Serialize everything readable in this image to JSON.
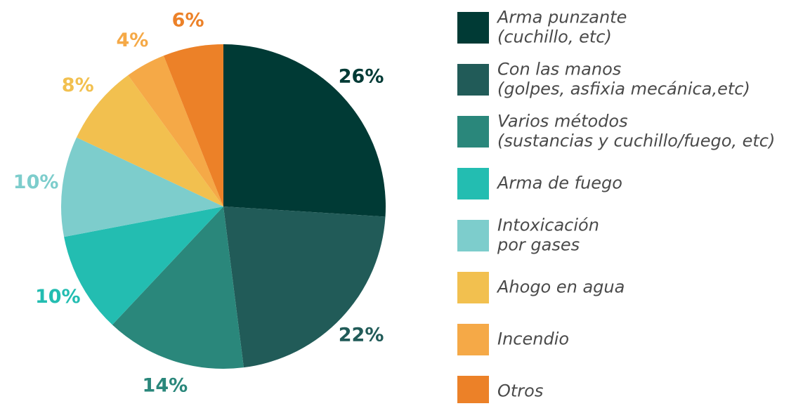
{
  "chart_data": {
    "type": "pie",
    "labels": [
      [
        "Arma punzante",
        "(cuchillo, etc)"
      ],
      [
        "Con las manos",
        "(golpes, asfixia mecánica,etc)"
      ],
      [
        "Varios métodos",
        "(sustancias y cuchillo/fuego, etc)"
      ],
      [
        "Arma de fuego"
      ],
      [
        "Intoxicación",
        "por gases"
      ],
      [
        "Ahogo en agua"
      ],
      [
        "Incendio"
      ],
      [
        "Otros"
      ]
    ],
    "values": [
      26,
      22,
      14,
      10,
      10,
      8,
      4,
      6
    ],
    "value_labels": [
      "26%",
      "22%",
      "14%",
      "10%",
      "10%",
      "8%",
      "4%",
      "6%"
    ],
    "colors": [
      "#003a35",
      "#215b58",
      "#2a877b",
      "#23bdb1",
      "#7dcdcc",
      "#f2c04f",
      "#f5a947",
      "#ec8128"
    ]
  }
}
